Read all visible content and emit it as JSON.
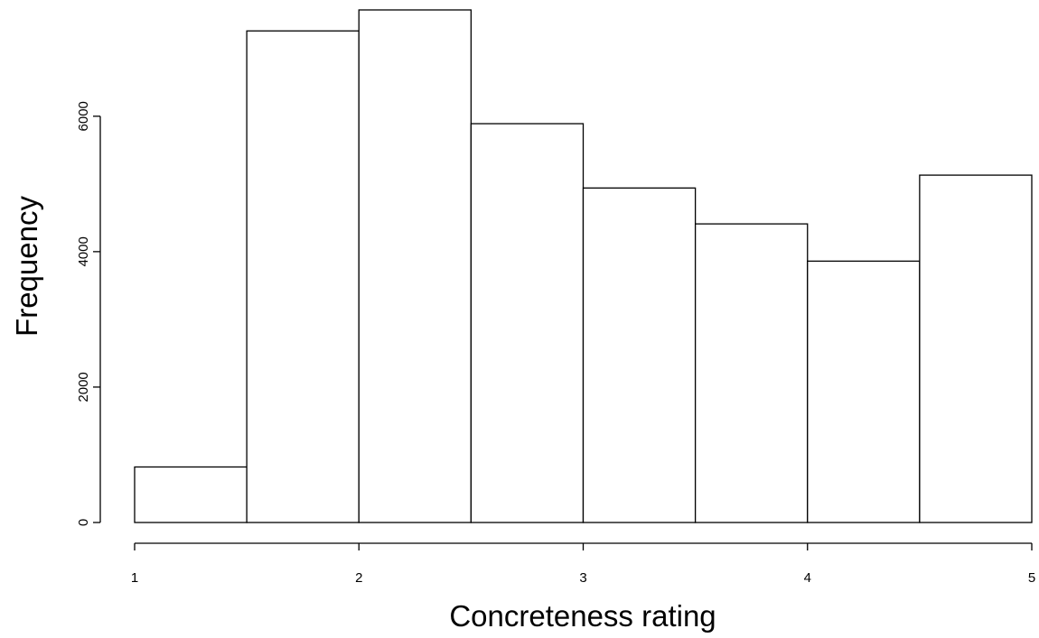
{
  "chart_data": {
    "type": "bar",
    "subtype": "histogram",
    "title": "",
    "xlabel": "Concreteness rating",
    "ylabel": "Frequency",
    "bins": [
      {
        "from": 1.0,
        "to": 1.5,
        "value": 820
      },
      {
        "from": 1.5,
        "to": 2.0,
        "value": 7260
      },
      {
        "from": 2.0,
        "to": 2.5,
        "value": 7570
      },
      {
        "from": 2.5,
        "to": 3.0,
        "value": 5890
      },
      {
        "from": 3.0,
        "to": 3.5,
        "value": 4940
      },
      {
        "from": 3.5,
        "to": 4.0,
        "value": 4410
      },
      {
        "from": 4.0,
        "to": 4.5,
        "value": 3860
      },
      {
        "from": 4.5,
        "to": 5.0,
        "value": 5130
      }
    ],
    "xticks": [
      "1",
      "2",
      "3",
      "4",
      "5"
    ],
    "yticks": [
      "0",
      "2000",
      "4000",
      "6000"
    ],
    "xlim": [
      1,
      5
    ],
    "ylim": [
      0,
      7570
    ],
    "grid": false,
    "legend": "none",
    "bar_fill": "#ffffff",
    "bar_stroke": "#000000"
  }
}
